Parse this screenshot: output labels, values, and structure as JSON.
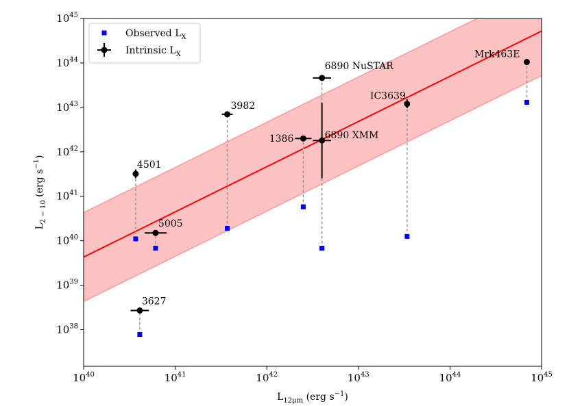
{
  "chart_data": {
    "type": "scatter",
    "x_scale": "log",
    "y_scale": "log",
    "xlim": [
      1e+40,
      1e+45
    ],
    "ylim": [
      1.5e+37,
      1e+45
    ],
    "xlabel": {
      "main": "L",
      "sub": "12μm",
      "rest": " (erg s",
      "sup": "−1",
      "close": ")"
    },
    "ylabel": {
      "main": "L",
      "sub": "2 − 10",
      "rest": " (erg s",
      "sup": "−1",
      "close": ")"
    },
    "x_ticks": [
      {
        "value": 1e+40,
        "base": "10",
        "exp": "40"
      },
      {
        "value": 1e+41,
        "base": "10",
        "exp": "41"
      },
      {
        "value": 1e+42,
        "base": "10",
        "exp": "42"
      },
      {
        "value": 1e+43,
        "base": "10",
        "exp": "43"
      },
      {
        "value": 1e+44,
        "base": "10",
        "exp": "44"
      },
      {
        "value": 1e+45,
        "base": "10",
        "exp": "45"
      }
    ],
    "y_ticks": [
      {
        "value": 1e+38,
        "base": "10",
        "exp": "38"
      },
      {
        "value": 1e+39,
        "base": "10",
        "exp": "39"
      },
      {
        "value": 1e+40,
        "base": "10",
        "exp": "40"
      },
      {
        "value": 1e+41,
        "base": "10",
        "exp": "41"
      },
      {
        "value": 1e+42,
        "base": "10",
        "exp": "42"
      },
      {
        "value": 1e+43,
        "base": "10",
        "exp": "43"
      },
      {
        "value": 1e+44,
        "base": "10",
        "exp": "44"
      },
      {
        "value": 1e+45,
        "base": "10",
        "exp": "45"
      }
    ],
    "legend": {
      "position": "top-left",
      "entries": [
        {
          "main": "Observed L",
          "sub": "X",
          "color": "#0000ff",
          "marker": "square"
        },
        {
          "main": "Intrinsic L",
          "sub": "X",
          "color": "#000000",
          "marker": "circle-errorbar"
        }
      ]
    },
    "relation": {
      "color": "#ff0000",
      "band_color": "#ff9999",
      "band_dex": 1.0,
      "points": [
        [
          1e+40,
          4.3e+39
        ],
        [
          1e+45,
          5.2e+44
        ]
      ]
    },
    "series": [
      {
        "name": "4501",
        "x": 3.7e+40,
        "y_obs": 1.1e+40,
        "y_int": 3.2e+41,
        "xerr_dex": 0.0,
        "yerr_dex": 0.1
      },
      {
        "name": "5005",
        "x": 6.1e+40,
        "y_obs": 6.8e+39,
        "y_int": 1.5e+40,
        "xerr_dex": 0.12,
        "yerr_dex": 0.0
      },
      {
        "name": "3627",
        "x": 4.1e+40,
        "y_obs": 7.8e+37,
        "y_int": 2.7e+38,
        "xerr_dex": 0.1,
        "yerr_dex": 0.07
      },
      {
        "name": "3982",
        "x": 3.7e+41,
        "y_obs": 1.9e+40,
        "y_int": 7e+42,
        "xerr_dex": 0.06,
        "yerr_dex": 0.0
      },
      {
        "name": "1386",
        "x": 2.5e+42,
        "y_obs": 5.8e+40,
        "y_int": 2e+42,
        "xerr_dex": 0.09,
        "yerr_dex": 0.0
      },
      {
        "name": "6890 NuSTAR",
        "x": 4e+42,
        "y_obs": 6.8e+39,
        "y_int": 4.6e+43,
        "xerr_dex": 0.1,
        "yerr_dex": 0.0
      },
      {
        "name": "6890 XMM",
        "x": 4e+42,
        "y_obs": 6.8e+39,
        "y_int": 1.8e+42,
        "xerr_dex": 0.1,
        "yerr_dex": 0.85
      },
      {
        "name": "IC3639",
        "x": 3.4e+43,
        "y_obs": 1.25e+40,
        "y_int": 1.2e+43,
        "xerr_dex": 0.0,
        "yerr_dex": 0.1
      },
      {
        "name": "Mrk463E",
        "x": 6.9e+44,
        "y_obs": 1.3e+43,
        "y_int": 1.05e+44,
        "xerr_dex": 0.0,
        "yerr_dex": 0.0
      }
    ]
  }
}
